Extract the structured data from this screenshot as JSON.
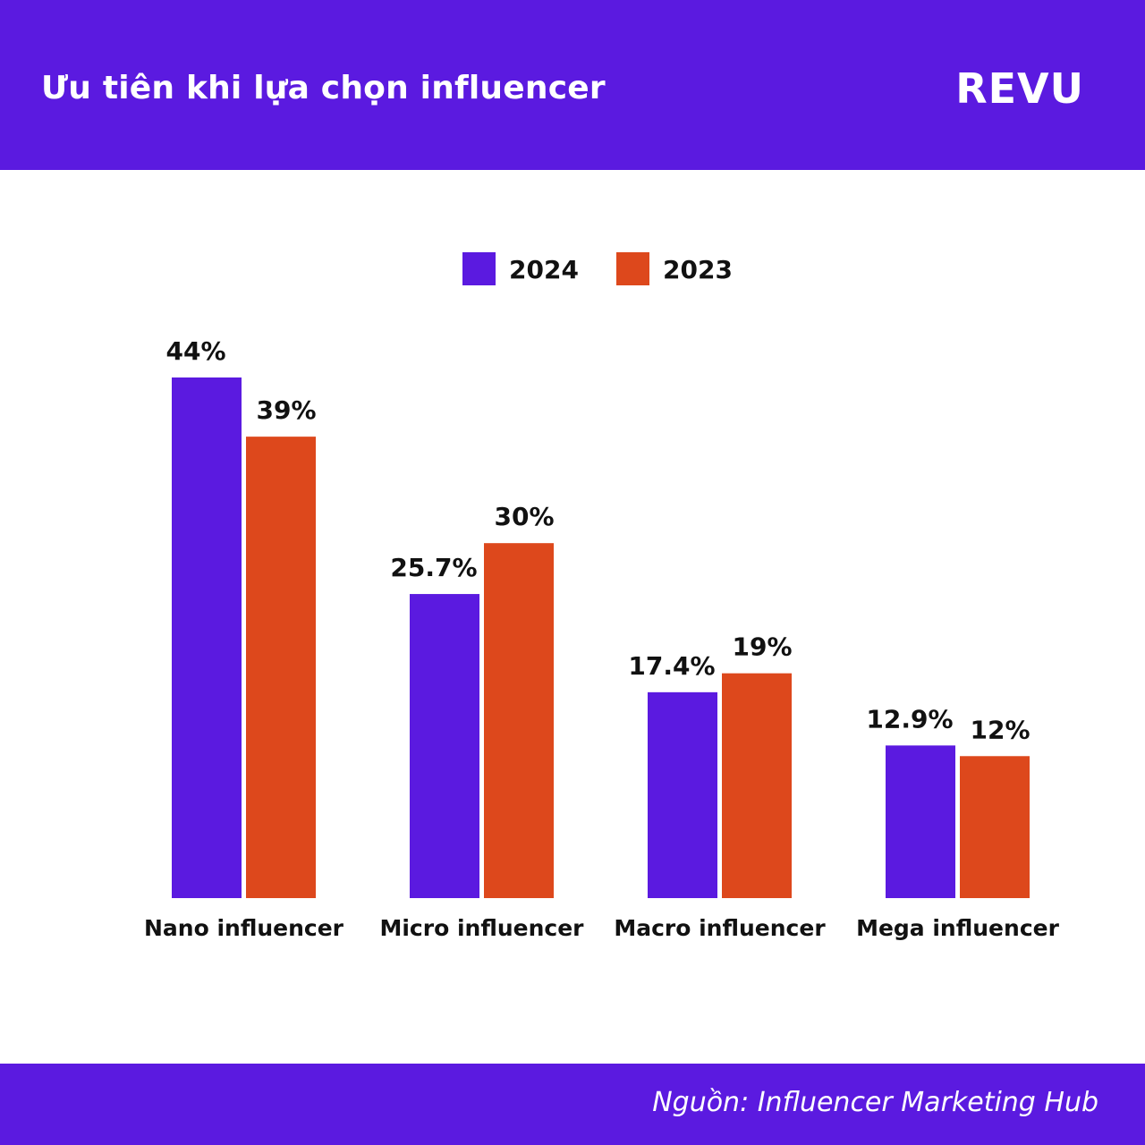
{
  "header": {
    "title": "Ưu tiên khi lựa chọn influencer",
    "brand": "REVU"
  },
  "footer": {
    "source": "Nguồn: Influencer Marketing Hub"
  },
  "colors": {
    "primary": "#5b1ae0",
    "series_2024": "#5b1ae0",
    "series_2023": "#dd481c",
    "text": "#111111"
  },
  "chart_data": {
    "type": "bar",
    "title": "",
    "xlabel": "",
    "ylabel": "",
    "ylim": [
      0,
      44
    ],
    "grid": false,
    "legend_position": "top-center",
    "categories": [
      "Nano influencer",
      "Micro influencer",
      "Macro influencer",
      "Mega influencer"
    ],
    "series": [
      {
        "name": "2024",
        "values": [
          44,
          25.7,
          17.4,
          12.9
        ],
        "labels": [
          "44%",
          "25.7%",
          "17.4%",
          "12.9%"
        ],
        "color": "#5b1ae0"
      },
      {
        "name": "2023",
        "values": [
          39,
          30,
          19,
          12
        ],
        "labels": [
          "39%",
          "30%",
          "19%",
          "12%"
        ],
        "color": "#dd481c"
      }
    ]
  }
}
